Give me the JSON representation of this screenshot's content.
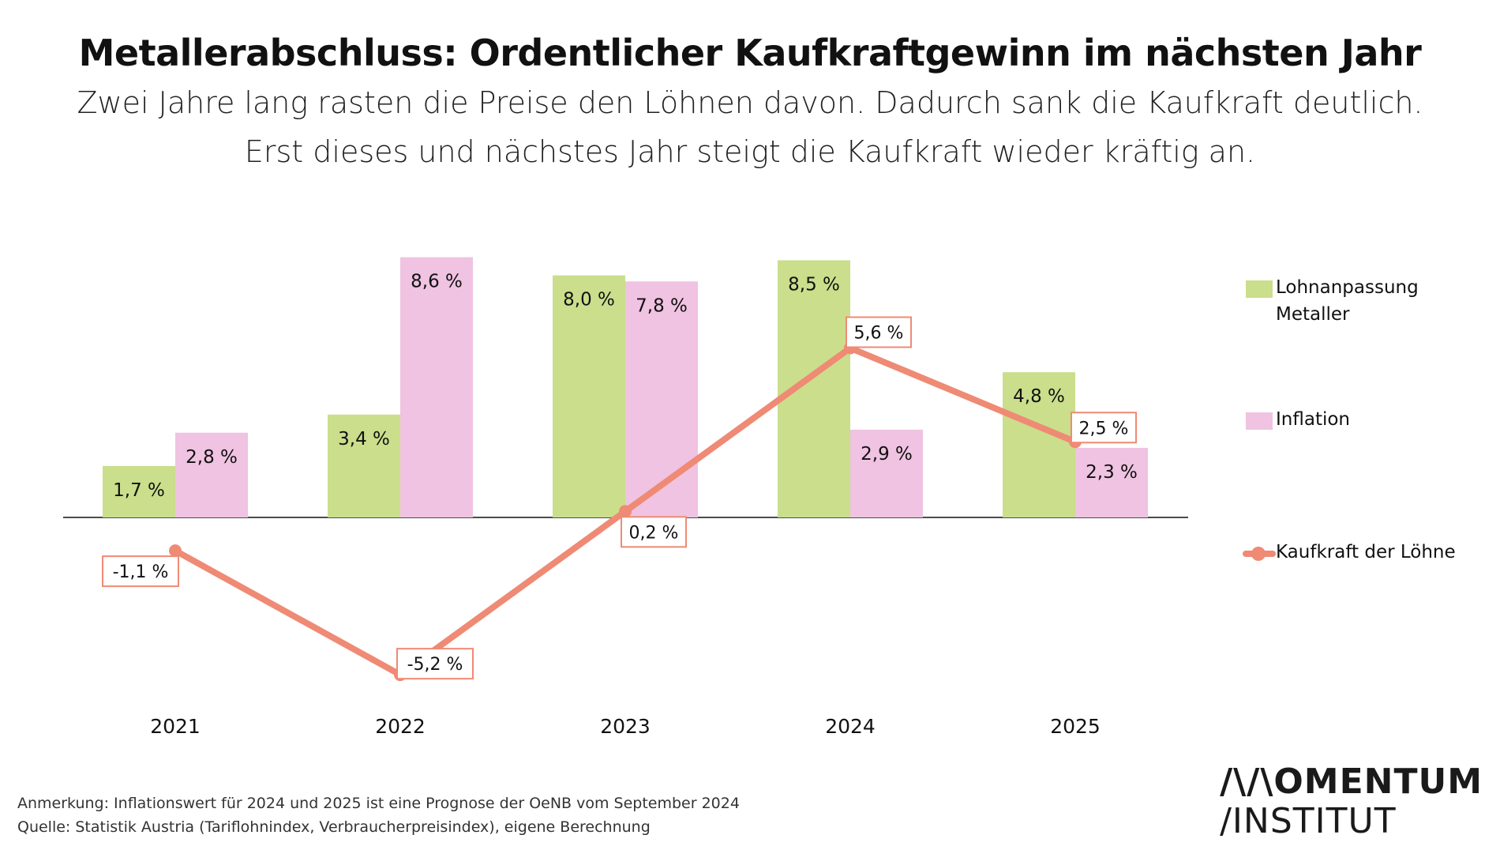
{
  "header": {
    "title": "Metallerabschluss: Ordentlicher Kaufkraftgewinn im nächsten Jahr",
    "subtitle_line1": "Zwei Jahre lang rasten die Preise den Löhnen davon. Dadurch sank die Kaufkraft deutlich.",
    "subtitle_line2": "Erst dieses und nächstes Jahr steigt die Kaufkraft wieder kräftig an."
  },
  "colors": {
    "lohn": "#cade8c",
    "inflation": "#efc3e1",
    "kaufkraft": "#ef8a75"
  },
  "chart_data": {
    "type": "bar",
    "title": "Metallerabschluss: Ordentlicher Kaufkraftgewinn im nächsten Jahr",
    "xlabel": "",
    "ylabel": "",
    "categories": [
      "2021",
      "2022",
      "2023",
      "2024",
      "2025"
    ],
    "ylim": [
      -6,
      9
    ],
    "series": [
      {
        "name": "Lohnanpassung Metaller",
        "kind": "bar",
        "values": [
          1.7,
          3.4,
          8.0,
          8.5,
          4.8
        ],
        "labels": [
          "1,7 %",
          "3,4 %",
          "8,0 %",
          "8,5 %",
          "4,8 %"
        ]
      },
      {
        "name": "Inflation",
        "kind": "bar",
        "values": [
          2.8,
          8.6,
          7.8,
          2.9,
          2.3
        ],
        "labels": [
          "2,8 %",
          "8,6 %",
          "7,8 %",
          "2,9 %",
          "2,3 %"
        ]
      },
      {
        "name": "Kaufkraft der Löhne",
        "kind": "line",
        "values": [
          -1.1,
          -5.2,
          0.2,
          5.6,
          2.5
        ],
        "labels": [
          "-1,1 %",
          "-5,2 %",
          "0,2 %",
          "5,6 %",
          "2,5 %"
        ]
      }
    ],
    "legend": [
      "Lohnanpassung",
      "Metaller",
      "Inflation",
      "Kaufkraft der Löhne"
    ],
    "legend_position": "right"
  },
  "footer": {
    "note": "Anmerkung: Inflationswert für 2024 und 2025 ist eine Prognose der OeNB vom September 2024",
    "source": "Quelle: Statistik Austria (Tariflohnindex, Verbraucherpreisindex), eigene Berechnung",
    "logo_line1": "/\\/\\OMENTUM",
    "logo_line2": "/INSTITUT"
  }
}
